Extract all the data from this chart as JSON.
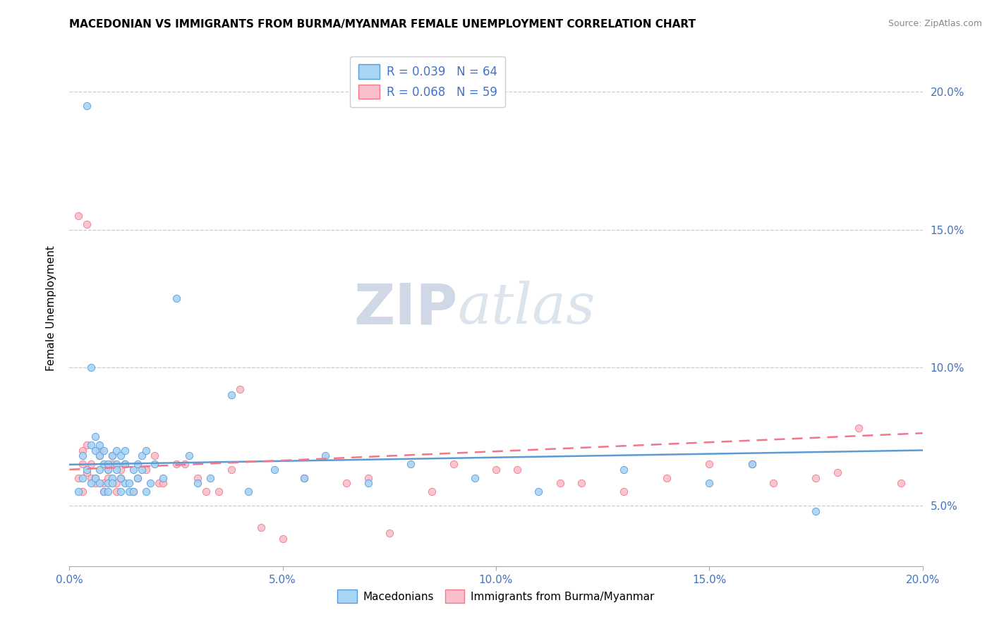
{
  "title": "MACEDONIAN VS IMMIGRANTS FROM BURMA/MYANMAR FEMALE UNEMPLOYMENT CORRELATION CHART",
  "source": "Source: ZipAtlas.com",
  "ylabel": "Female Unemployment",
  "ytick_vals": [
    0.05,
    0.1,
    0.15,
    0.2
  ],
  "xtick_vals": [
    0.0,
    0.05,
    0.1,
    0.15,
    0.2
  ],
  "xmin": 0.0,
  "xmax": 0.2,
  "ymin": 0.028,
  "ymax": 0.215,
  "legend_r1": "R = 0.039",
  "legend_n1": "N = 64",
  "legend_r2": "R = 0.068",
  "legend_n2": "N = 59",
  "color_macedonian": "#a8d4f5",
  "color_burma": "#f9c0cb",
  "color_line_macedonian": "#5b9bd5",
  "color_line_burma": "#f4768a",
  "watermark_zip": "ZIP",
  "watermark_atlas": "atlas",
  "mac_line_x0": 0.0,
  "mac_line_y0": 0.0648,
  "mac_line_x1": 0.2,
  "mac_line_y1": 0.07,
  "bur_line_x0": 0.0,
  "bur_line_y0": 0.063,
  "bur_line_x1": 0.2,
  "bur_line_y1": 0.0762,
  "macedonian_x": [
    0.004,
    0.003,
    0.005,
    0.004,
    0.006,
    0.005,
    0.006,
    0.007,
    0.006,
    0.007,
    0.008,
    0.007,
    0.008,
    0.009,
    0.008,
    0.009,
    0.01,
    0.009,
    0.01,
    0.011,
    0.01,
    0.011,
    0.012,
    0.011,
    0.012,
    0.013,
    0.012,
    0.013,
    0.014,
    0.013,
    0.015,
    0.014,
    0.016,
    0.015,
    0.017,
    0.016,
    0.018,
    0.017,
    0.019,
    0.018,
    0.02,
    0.022,
    0.025,
    0.028,
    0.03,
    0.033,
    0.038,
    0.042,
    0.048,
    0.055,
    0.06,
    0.07,
    0.08,
    0.095,
    0.11,
    0.13,
    0.15,
    0.16,
    0.175,
    0.003,
    0.002,
    0.005,
    0.007,
    0.009
  ],
  "macedonian_y": [
    0.195,
    0.068,
    0.072,
    0.063,
    0.07,
    0.058,
    0.075,
    0.063,
    0.06,
    0.068,
    0.055,
    0.072,
    0.065,
    0.058,
    0.07,
    0.063,
    0.068,
    0.055,
    0.06,
    0.065,
    0.058,
    0.07,
    0.055,
    0.063,
    0.068,
    0.058,
    0.06,
    0.065,
    0.055,
    0.07,
    0.063,
    0.058,
    0.065,
    0.055,
    0.068,
    0.06,
    0.055,
    0.063,
    0.058,
    0.07,
    0.065,
    0.06,
    0.125,
    0.068,
    0.058,
    0.06,
    0.09,
    0.055,
    0.063,
    0.06,
    0.068,
    0.058,
    0.065,
    0.06,
    0.055,
    0.063,
    0.058,
    0.065,
    0.048,
    0.06,
    0.055,
    0.1,
    0.058,
    0.065
  ],
  "burma_x": [
    0.003,
    0.002,
    0.004,
    0.003,
    0.005,
    0.004,
    0.006,
    0.005,
    0.007,
    0.006,
    0.008,
    0.007,
    0.009,
    0.008,
    0.01,
    0.009,
    0.011,
    0.01,
    0.012,
    0.011,
    0.013,
    0.012,
    0.015,
    0.018,
    0.021,
    0.025,
    0.03,
    0.035,
    0.04,
    0.02,
    0.016,
    0.022,
    0.027,
    0.032,
    0.038,
    0.045,
    0.055,
    0.065,
    0.075,
    0.09,
    0.105,
    0.12,
    0.14,
    0.16,
    0.18,
    0.195,
    0.05,
    0.07,
    0.085,
    0.1,
    0.115,
    0.13,
    0.15,
    0.165,
    0.175,
    0.185,
    0.003,
    0.002,
    0.004
  ],
  "burma_y": [
    0.07,
    0.155,
    0.152,
    0.065,
    0.06,
    0.072,
    0.058,
    0.065,
    0.068,
    0.06,
    0.055,
    0.07,
    0.063,
    0.058,
    0.065,
    0.06,
    0.055,
    0.068,
    0.063,
    0.058,
    0.065,
    0.06,
    0.055,
    0.063,
    0.058,
    0.065,
    0.06,
    0.055,
    0.092,
    0.068,
    0.06,
    0.058,
    0.065,
    0.055,
    0.063,
    0.042,
    0.06,
    0.058,
    0.04,
    0.065,
    0.063,
    0.058,
    0.06,
    0.065,
    0.062,
    0.058,
    0.038,
    0.06,
    0.055,
    0.063,
    0.058,
    0.055,
    0.065,
    0.058,
    0.06,
    0.078,
    0.055,
    0.06,
    0.062
  ]
}
